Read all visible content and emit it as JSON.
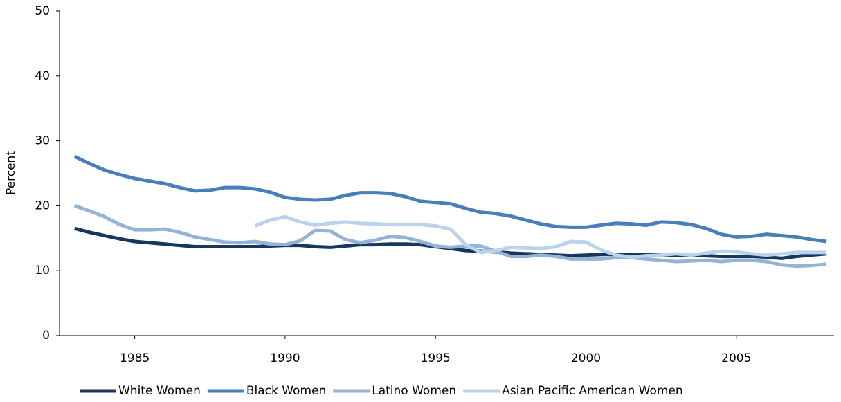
{
  "chart_data": {
    "type": "line",
    "y_label": "Percent",
    "x": [
      1983,
      1983.5,
      1984,
      1984.5,
      1985,
      1985.5,
      1986,
      1986.5,
      1987,
      1987.5,
      1988,
      1988.5,
      1989,
      1989.5,
      1990,
      1990.5,
      1991,
      1991.5,
      1992,
      1992.5,
      1993,
      1993.5,
      1994,
      1994.5,
      1995,
      1995.5,
      1996,
      1996.5,
      1997,
      1997.5,
      1998,
      1998.5,
      1999,
      1999.5,
      2000,
      2000.5,
      2001,
      2001.5,
      2002,
      2002.5,
      2003,
      2003.5,
      2004,
      2004.5,
      2005,
      2005.5,
      2006,
      2006.5,
      2007,
      2007.5,
      2008
    ],
    "series": [
      {
        "name": "White Women",
        "color": "#17375e",
        "values": [
          16.5,
          15.9,
          15.4,
          14.9,
          14.5,
          14.3,
          14.1,
          13.9,
          13.7,
          13.7,
          13.7,
          13.7,
          13.7,
          13.8,
          13.9,
          13.9,
          13.7,
          13.6,
          13.8,
          14.0,
          14.0,
          14.1,
          14.1,
          14.0,
          13.7,
          13.4,
          13.1,
          13.0,
          12.9,
          12.7,
          12.6,
          12.5,
          12.4,
          12.3,
          12.4,
          12.5,
          12.5,
          12.5,
          12.5,
          12.4,
          12.4,
          12.4,
          12.3,
          12.2,
          12.2,
          12.2,
          12.1,
          11.9,
          12.2,
          12.4,
          12.6
        ]
      },
      {
        "name": "Black Women",
        "color": "#4a7ebb",
        "values": [
          27.6,
          26.5,
          25.5,
          24.8,
          24.2,
          23.8,
          23.4,
          22.8,
          22.3,
          22.4,
          22.8,
          22.8,
          22.6,
          22.1,
          21.3,
          21.0,
          20.9,
          21.0,
          21.6,
          22.0,
          22.0,
          21.9,
          21.4,
          20.7,
          20.5,
          20.3,
          19.6,
          19.0,
          18.8,
          18.4,
          17.8,
          17.2,
          16.8,
          16.7,
          16.7,
          17.0,
          17.3,
          17.2,
          17.0,
          17.5,
          17.4,
          17.1,
          16.5,
          15.6,
          15.2,
          15.3,
          15.6,
          15.4,
          15.2,
          14.8,
          14.5
        ]
      },
      {
        "name": "Latino Women",
        "color": "#95b3d7",
        "values": [
          20.0,
          19.2,
          18.3,
          17.1,
          16.3,
          16.3,
          16.4,
          15.9,
          15.2,
          14.8,
          14.4,
          14.3,
          14.5,
          14.1,
          14.0,
          14.6,
          16.2,
          16.1,
          14.8,
          14.3,
          14.7,
          15.3,
          15.1,
          14.5,
          13.8,
          13.6,
          13.8,
          13.8,
          13.0,
          12.2,
          12.2,
          12.4,
          12.2,
          11.8,
          11.8,
          11.8,
          12.0,
          12.0,
          11.8,
          11.6,
          11.4,
          11.5,
          11.6,
          11.4,
          11.6,
          11.6,
          11.4,
          10.9,
          10.7,
          10.8,
          11.0
        ]
      },
      {
        "name": "Asian Pacific American Women",
        "color": "#b9d3ee",
        "values": [
          null,
          null,
          null,
          null,
          null,
          null,
          null,
          null,
          null,
          null,
          null,
          null,
          16.9,
          17.8,
          18.3,
          17.5,
          17.0,
          17.3,
          17.5,
          17.3,
          17.2,
          17.1,
          17.1,
          17.1,
          16.9,
          16.4,
          14.0,
          12.8,
          13.1,
          13.6,
          13.5,
          13.4,
          13.7,
          14.5,
          14.4,
          13.2,
          12.4,
          12.1,
          12.3,
          12.4,
          12.6,
          12.4,
          12.7,
          13.0,
          12.9,
          12.6,
          12.4,
          12.6,
          12.8,
          12.8,
          12.8
        ]
      }
    ],
    "xlim": [
      1982.5,
      2008.25
    ],
    "xticks": [
      1985,
      1990,
      1995,
      2000,
      2005
    ],
    "ylim": [
      0,
      50
    ],
    "yticks": [
      0,
      10,
      20,
      30,
      40,
      50
    ],
    "grid": false,
    "legend": "bottom"
  }
}
